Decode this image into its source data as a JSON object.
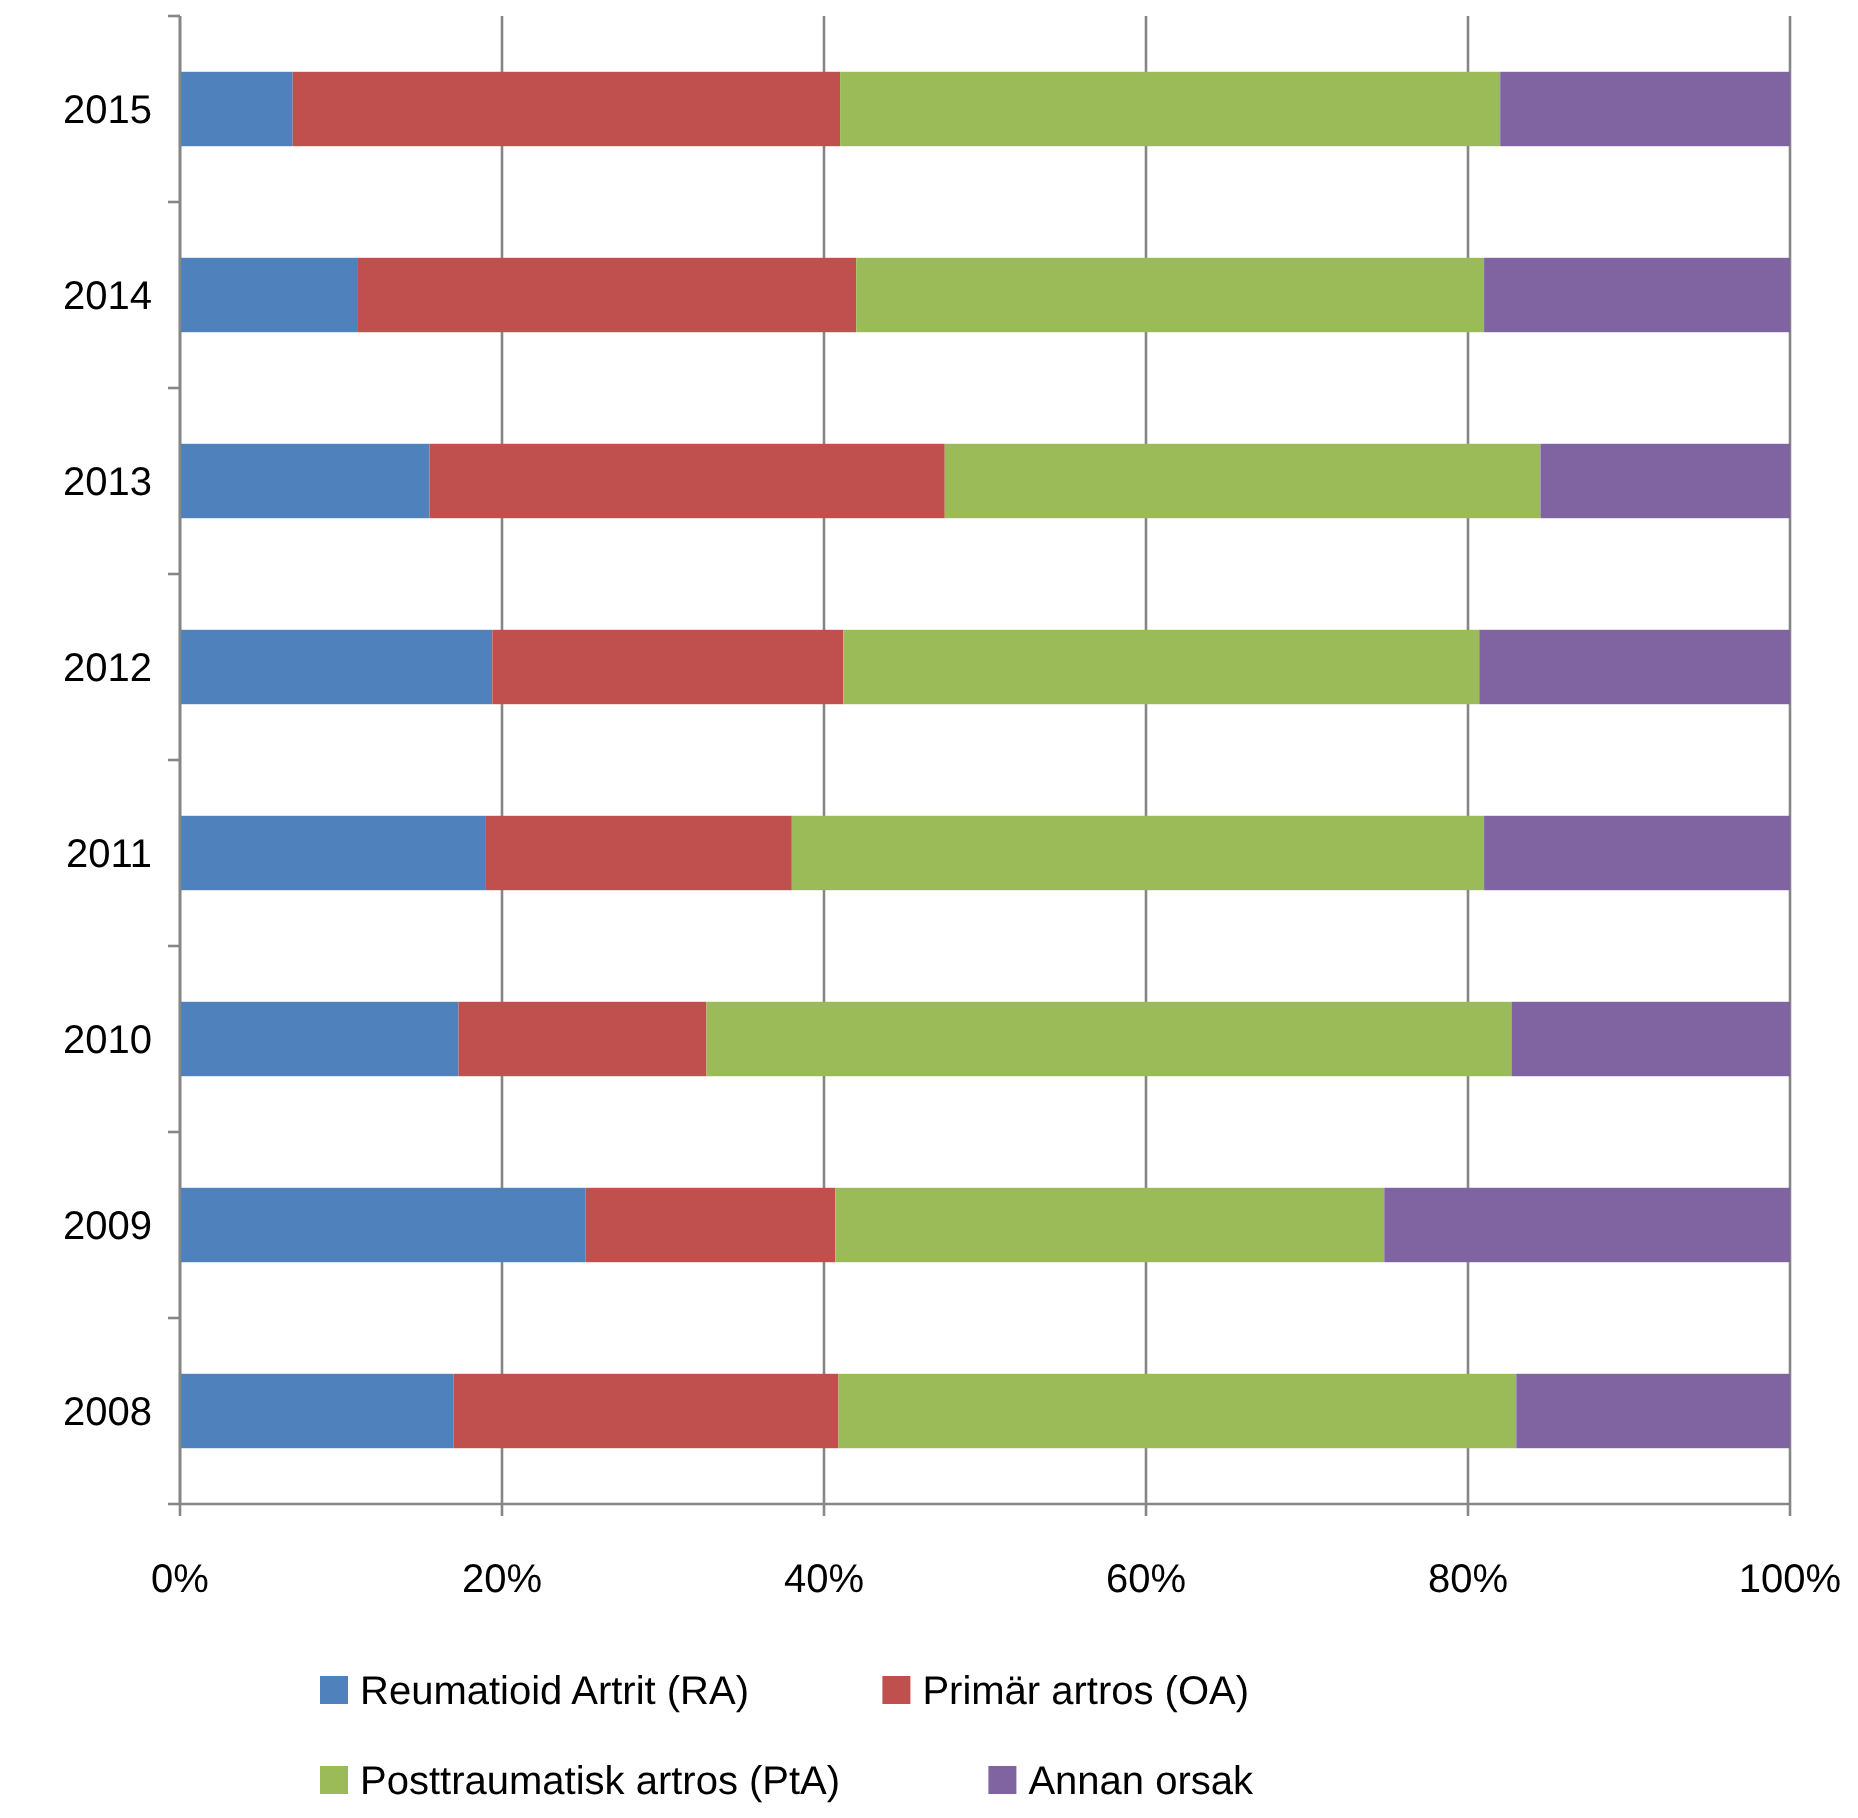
{
  "chart_data": {
    "type": "bar",
    "orientation": "horizontal",
    "stacked": true,
    "categories": [
      "2015",
      "2014",
      "2013",
      "2012",
      "2011",
      "2010",
      "2009",
      "2008"
    ],
    "series": [
      {
        "name": "Reumatioid Artrit (RA)",
        "color": "#4f81bd",
        "values": [
          7,
          11,
          15.5,
          19.4,
          19,
          17.3,
          25.2,
          17
        ]
      },
      {
        "name": "Primär artros (OA)",
        "color": "#c0504d",
        "values": [
          34,
          31,
          32,
          21.8,
          19,
          15.4,
          15.5,
          23.9
        ]
      },
      {
        "name": "Posttraumatisk artros (PtA)",
        "color": "#9bbb59",
        "values": [
          41,
          39,
          37,
          39.5,
          43,
          50,
          34.1,
          42.1
        ]
      },
      {
        "name": "Annan orsak",
        "color": "#8064a2",
        "values": [
          18,
          19,
          15.5,
          19.3,
          19,
          17.3,
          25.2,
          17
        ]
      }
    ],
    "xlim": [
      0,
      100
    ],
    "xticks": [
      {
        "value": 0,
        "label": "0%"
      },
      {
        "value": 20,
        "label": "20%"
      },
      {
        "value": 40,
        "label": "40%"
      },
      {
        "value": 60,
        "label": "60%"
      },
      {
        "value": 80,
        "label": "80%"
      },
      {
        "value": 100,
        "label": "100%"
      }
    ],
    "grid": "x",
    "legend": "bottom"
  }
}
